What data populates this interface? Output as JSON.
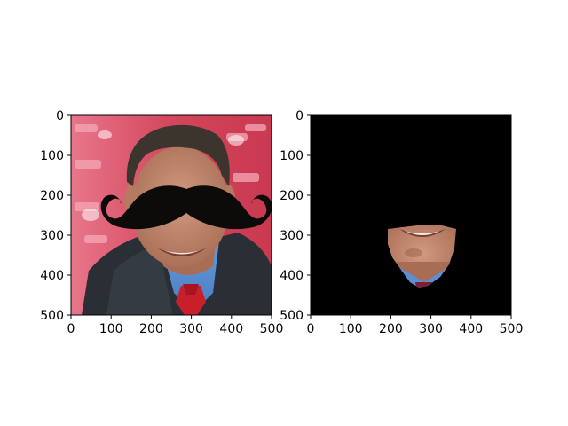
{
  "chart_data": [
    {
      "type": "image",
      "title": "",
      "xlabel": "",
      "ylabel": "",
      "xlim": [
        0,
        500
      ],
      "ylim": [
        500,
        0
      ],
      "xticks": [
        0,
        100,
        200,
        300,
        400,
        500
      ],
      "yticks": [
        0,
        100,
        200,
        300,
        400,
        500
      ],
      "content": "photo of a man in a suit with red tie, cartoon black mustache overlay on face",
      "overlay": {
        "shape": "mustache",
        "color": "#0d0a0a",
        "x_range": [
          95,
          455
        ],
        "y_range": [
          180,
          280
        ]
      }
    },
    {
      "type": "image",
      "title": "",
      "xlabel": "",
      "ylabel": "",
      "xlim": [
        0,
        500
      ],
      "ylim": [
        500,
        0
      ],
      "xticks": [
        0,
        100,
        200,
        300,
        400,
        500
      ],
      "yticks": [
        0,
        100,
        200,
        300,
        400,
        500
      ],
      "content": "black background with masked lower-face region (mouth and chin) visible",
      "visible_region": {
        "x_range": [
          190,
          365
        ],
        "y_range": [
          275,
          430
        ]
      }
    }
  ],
  "colors": {
    "background": "#ffffff",
    "axes_edge": "#000000",
    "mask_black": "#000000",
    "stadium_red": "#d8475d",
    "suit_dark": "#2a2f36",
    "shirt_blue": "#5b8fd6",
    "tie_red": "#c8202b",
    "skin": "#c48a70",
    "hair": "#3b352e",
    "mustache": "#0d0a0a"
  }
}
